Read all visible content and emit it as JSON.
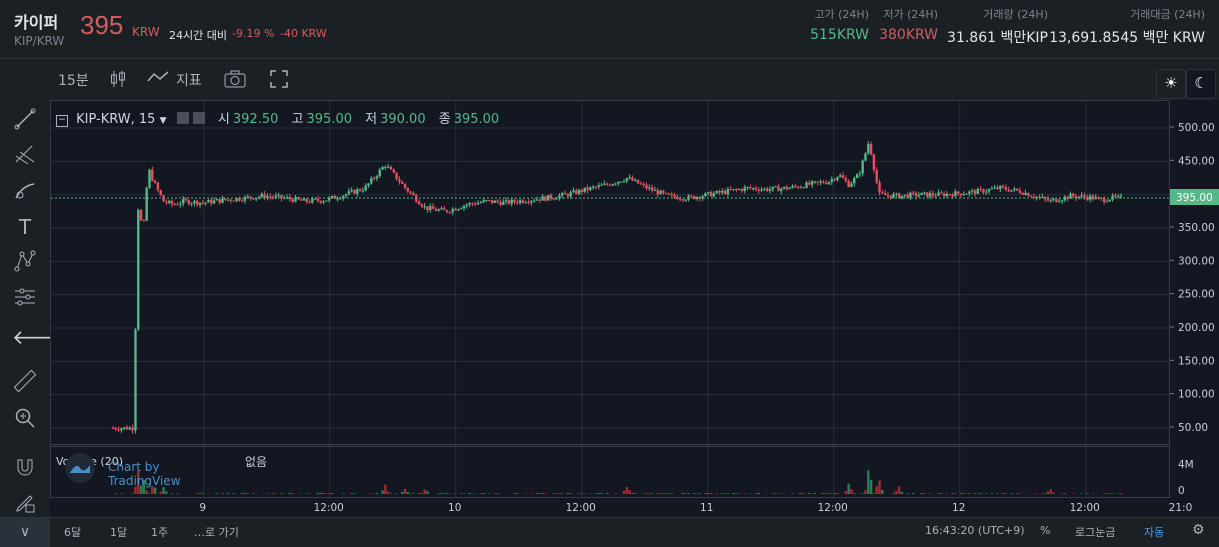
{
  "header": {
    "coin_name": "카이퍼",
    "pair": "KIP/KRW",
    "price": "395",
    "price_unit": "KRW",
    "change_label": "24시간 대비",
    "change_pct": "-9.19 %",
    "change_abs": "-40 KRW",
    "stats": [
      {
        "label": "고가 (24H)",
        "value": "515KRW",
        "color": "#53b987"
      },
      {
        "label": "저가 (24H)",
        "value": "380KRW",
        "color": "#d05d5f"
      },
      {
        "label": "거래량 (24H)",
        "value": "31.861 백만KIP",
        "color": "#e3e6ea"
      },
      {
        "label": "거래대금 (24H)",
        "value": "13,691.8545 백만 KRW",
        "color": "#e3e6ea"
      }
    ]
  },
  "toolbar": {
    "interval": "15분",
    "indicators": "지표"
  },
  "legend": {
    "symbol": "KIP-KRW, 15",
    "open_label": "시",
    "open": "392.50",
    "high_label": "고",
    "high": "395.00",
    "low_label": "저",
    "low": "390.00",
    "close_label": "종",
    "close": "395.00"
  },
  "volume_legend": {
    "label": "Volume (20)",
    "extra": "없음"
  },
  "watermark": "Chart by TradingView",
  "bottom": {
    "ranges": [
      "6달",
      "1달",
      "1주",
      "…로 가기"
    ],
    "clock": "16:43:20 (UTC+9)",
    "percent": "%",
    "log": "로그눈금",
    "auto": "자동"
  },
  "colors": {
    "up": "#53b987",
    "down": "#eb4d5c",
    "price_line": "#53b987"
  },
  "chart_data": {
    "type": "candlestick",
    "price_axis": {
      "min": 50,
      "max": 500,
      "ticks": [
        50,
        100,
        150,
        200,
        250,
        300,
        350,
        400,
        450,
        500
      ],
      "tick_labels": [
        "50.00",
        "100.00",
        "150.00",
        "200.00",
        "250.00",
        "300.00",
        "350.00",
        "400.00",
        "450.00",
        "500.00"
      ]
    },
    "last_price_label": "395.00",
    "last_price": 395,
    "time_ticks": [
      {
        "label": "9",
        "t": 0.09
      },
      {
        "label": "12:00",
        "t": 0.215
      },
      {
        "label": "10",
        "t": 0.34
      },
      {
        "label": "12:00",
        "t": 0.465
      },
      {
        "label": "11",
        "t": 0.59
      },
      {
        "label": "12:00",
        "t": 0.715
      },
      {
        "label": "12",
        "t": 0.84
      },
      {
        "label": "12:00",
        "t": 0.965
      },
      {
        "label": "21:0",
        "t": 1.06
      }
    ],
    "price_path": [
      {
        "t": 0.0,
        "p": 50
      },
      {
        "t": 0.02,
        "p": 50
      },
      {
        "t": 0.025,
        "p": 380
      },
      {
        "t": 0.03,
        "p": 345
      },
      {
        "t": 0.035,
        "p": 440
      },
      {
        "t": 0.04,
        "p": 420
      },
      {
        "t": 0.05,
        "p": 390
      },
      {
        "t": 0.06,
        "p": 385
      },
      {
        "t": 0.07,
        "p": 390
      },
      {
        "t": 0.09,
        "p": 388
      },
      {
        "t": 0.11,
        "p": 392
      },
      {
        "t": 0.13,
        "p": 395
      },
      {
        "t": 0.15,
        "p": 398
      },
      {
        "t": 0.17,
        "p": 395
      },
      {
        "t": 0.19,
        "p": 390
      },
      {
        "t": 0.21,
        "p": 392
      },
      {
        "t": 0.23,
        "p": 400
      },
      {
        "t": 0.25,
        "p": 410
      },
      {
        "t": 0.27,
        "p": 445
      },
      {
        "t": 0.29,
        "p": 410
      },
      {
        "t": 0.31,
        "p": 380
      },
      {
        "t": 0.33,
        "p": 375
      },
      {
        "t": 0.35,
        "p": 385
      },
      {
        "t": 0.37,
        "p": 390
      },
      {
        "t": 0.39,
        "p": 388
      },
      {
        "t": 0.41,
        "p": 392
      },
      {
        "t": 0.43,
        "p": 395
      },
      {
        "t": 0.45,
        "p": 400
      },
      {
        "t": 0.47,
        "p": 408
      },
      {
        "t": 0.49,
        "p": 415
      },
      {
        "t": 0.51,
        "p": 425
      },
      {
        "t": 0.53,
        "p": 410
      },
      {
        "t": 0.55,
        "p": 398
      },
      {
        "t": 0.57,
        "p": 395
      },
      {
        "t": 0.59,
        "p": 400
      },
      {
        "t": 0.61,
        "p": 405
      },
      {
        "t": 0.63,
        "p": 410
      },
      {
        "t": 0.65,
        "p": 408
      },
      {
        "t": 0.67,
        "p": 410
      },
      {
        "t": 0.69,
        "p": 415
      },
      {
        "t": 0.71,
        "p": 420
      },
      {
        "t": 0.72,
        "p": 430
      },
      {
        "t": 0.73,
        "p": 415
      },
      {
        "t": 0.74,
        "p": 430
      },
      {
        "t": 0.75,
        "p": 480
      },
      {
        "t": 0.76,
        "p": 400
      },
      {
        "t": 0.78,
        "p": 398
      },
      {
        "t": 0.8,
        "p": 400
      },
      {
        "t": 0.82,
        "p": 400
      },
      {
        "t": 0.84,
        "p": 402
      },
      {
        "t": 0.86,
        "p": 405
      },
      {
        "t": 0.88,
        "p": 410
      },
      {
        "t": 0.9,
        "p": 405
      },
      {
        "t": 0.92,
        "p": 395
      },
      {
        "t": 0.93,
        "p": 390
      },
      {
        "t": 0.95,
        "p": 398
      },
      {
        "t": 0.97,
        "p": 396
      },
      {
        "t": 0.98,
        "p": 392
      },
      {
        "t": 0.99,
        "p": 395
      }
    ],
    "volume_axis": {
      "ticks": [
        "4M",
        "0"
      ]
    },
    "volume_spikes": [
      {
        "t": 0.025,
        "v": 3.0
      },
      {
        "t": 0.03,
        "v": 2.2
      },
      {
        "t": 0.04,
        "v": 1.4
      },
      {
        "t": 0.05,
        "v": 0.8
      },
      {
        "t": 0.27,
        "v": 1.1
      },
      {
        "t": 0.29,
        "v": 0.6
      },
      {
        "t": 0.31,
        "v": 0.7
      },
      {
        "t": 0.51,
        "v": 0.9
      },
      {
        "t": 0.73,
        "v": 1.3
      },
      {
        "t": 0.75,
        "v": 3.6
      },
      {
        "t": 0.76,
        "v": 2.0
      },
      {
        "t": 0.78,
        "v": 0.9
      },
      {
        "t": 0.93,
        "v": 0.5
      }
    ]
  }
}
